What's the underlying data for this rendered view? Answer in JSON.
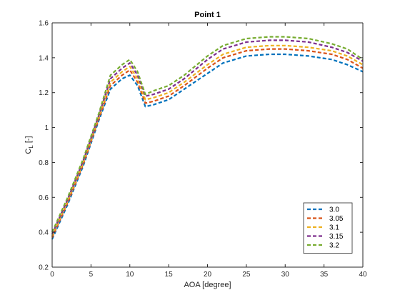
{
  "chart_data": {
    "type": "line",
    "title": "Point 1",
    "xlabel": "AOA [degree]",
    "ylabel_main": "C",
    "ylabel_sub": "L",
    "ylabel_unit": "[-]",
    "xlim": [
      0,
      40
    ],
    "ylim": [
      0.2,
      1.6
    ],
    "x_ticks": [
      0,
      5,
      10,
      15,
      20,
      25,
      30,
      35,
      40
    ],
    "y_ticks": [
      0.2,
      0.4,
      0.6,
      0.8,
      1,
      1.2,
      1.4,
      1.6
    ],
    "x_tick_labels": [
      "0",
      "5",
      "10",
      "15",
      "20",
      "25",
      "30",
      "35",
      "40"
    ],
    "y_tick_labels": [
      "0.2",
      "0.4",
      "0.6",
      "0.8",
      "1",
      "1.2",
      "1.4",
      "1.6"
    ],
    "grid": false,
    "legend_position": "bottom-right",
    "line_style": "dashed",
    "series": [
      {
        "name": "3.0",
        "color": "#0072BD",
        "x": [
          0,
          2,
          4,
          6,
          7.5,
          9,
          10,
          11,
          12,
          13,
          15,
          17,
          20,
          22,
          25,
          28,
          30,
          33,
          36,
          38,
          40
        ],
        "y": [
          0.36,
          0.56,
          0.78,
          1.04,
          1.22,
          1.28,
          1.3,
          1.24,
          1.12,
          1.13,
          1.16,
          1.22,
          1.31,
          1.37,
          1.41,
          1.42,
          1.42,
          1.41,
          1.39,
          1.36,
          1.32
        ]
      },
      {
        "name": "3.05",
        "color": "#D95319",
        "x": [
          0,
          2,
          4,
          6,
          7.5,
          9,
          10,
          11,
          12,
          13,
          15,
          17,
          20,
          22,
          25,
          28,
          30,
          33,
          36,
          38,
          40
        ],
        "y": [
          0.37,
          0.57,
          0.79,
          1.05,
          1.24,
          1.3,
          1.33,
          1.26,
          1.14,
          1.15,
          1.18,
          1.24,
          1.34,
          1.4,
          1.44,
          1.45,
          1.45,
          1.44,
          1.42,
          1.39,
          1.34
        ]
      },
      {
        "name": "3.1",
        "color": "#EDB120",
        "x": [
          0,
          2,
          4,
          6,
          7.5,
          9,
          10,
          11,
          12,
          13,
          15,
          17,
          20,
          22,
          25,
          28,
          30,
          33,
          36,
          38,
          40
        ],
        "y": [
          0.38,
          0.58,
          0.8,
          1.06,
          1.26,
          1.32,
          1.35,
          1.28,
          1.16,
          1.17,
          1.2,
          1.26,
          1.36,
          1.42,
          1.46,
          1.47,
          1.47,
          1.46,
          1.44,
          1.41,
          1.36
        ]
      },
      {
        "name": "3.15",
        "color": "#7E2F8E",
        "x": [
          0,
          2,
          4,
          6,
          7.5,
          9,
          10,
          11,
          12,
          13,
          15,
          17,
          20,
          22,
          25,
          28,
          30,
          33,
          36,
          38,
          40
        ],
        "y": [
          0.39,
          0.59,
          0.81,
          1.07,
          1.28,
          1.34,
          1.37,
          1.3,
          1.18,
          1.19,
          1.22,
          1.28,
          1.39,
          1.45,
          1.49,
          1.5,
          1.5,
          1.49,
          1.46,
          1.43,
          1.38
        ]
      },
      {
        "name": "3.2",
        "color": "#77AC30",
        "x": [
          0,
          2,
          4,
          6,
          7.5,
          9,
          10,
          11,
          12,
          13,
          15,
          17,
          20,
          22,
          25,
          28,
          30,
          33,
          36,
          38,
          40
        ],
        "y": [
          0.4,
          0.6,
          0.82,
          1.08,
          1.3,
          1.36,
          1.39,
          1.32,
          1.19,
          1.21,
          1.24,
          1.3,
          1.41,
          1.47,
          1.51,
          1.52,
          1.52,
          1.51,
          1.48,
          1.45,
          1.39
        ]
      }
    ]
  }
}
